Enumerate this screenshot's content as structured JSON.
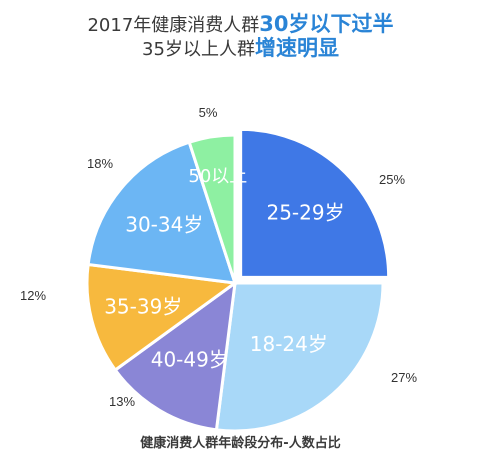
{
  "header": {
    "line1_prefix": "2017年健康消费人群",
    "line1_highlight": "30岁以下过半",
    "line2_prefix": "35岁以上人群",
    "line2_highlight": "增速明显"
  },
  "caption": "健康消费人群年龄段分布-人数占比",
  "chart_data": {
    "type": "pie",
    "title": "2017年健康消费人群30岁以下过半 35岁以上人群增速明显",
    "slices": [
      {
        "label": "25-29岁",
        "value": 25,
        "percent_label": "25%",
        "color": "#3f78e6"
      },
      {
        "label": "18-24岁",
        "value": 27,
        "percent_label": "27%",
        "color": "#a8d8f8"
      },
      {
        "label": "40-49岁",
        "value": 13,
        "percent_label": "13%",
        "color": "#8a86d6"
      },
      {
        "label": "35-39岁",
        "value": 12,
        "percent_label": "12%",
        "color": "#f7b93e"
      },
      {
        "label": "30-34岁",
        "value": 18,
        "percent_label": "18%",
        "color": "#6cb6f4"
      },
      {
        "label": "50以上",
        "value": 5,
        "percent_label": "5%",
        "color": "#8ef0a2"
      }
    ]
  }
}
